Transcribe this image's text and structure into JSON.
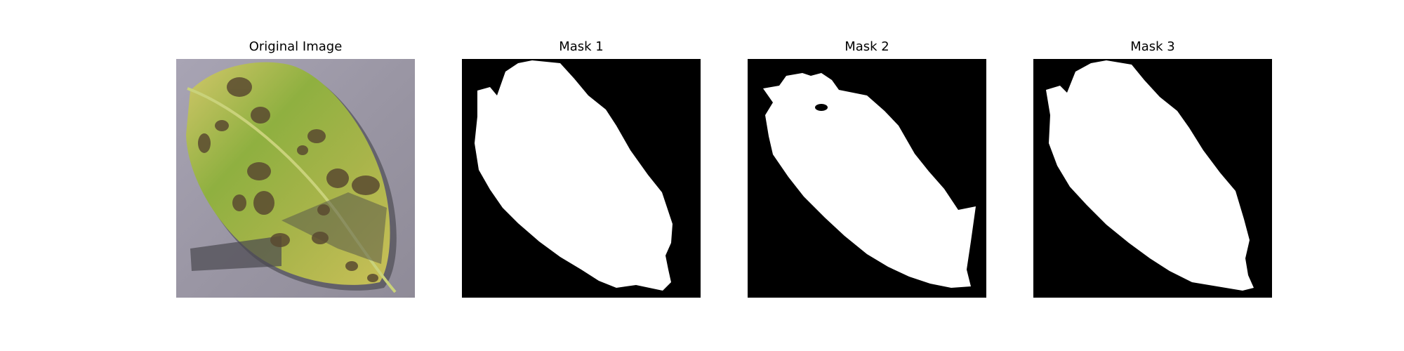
{
  "panels": [
    {
      "title": "Original Image",
      "kind": "photo",
      "subject": "leaf-with-spots"
    },
    {
      "title": "Mask 1",
      "kind": "binary-mask"
    },
    {
      "title": "Mask 2",
      "kind": "binary-mask"
    },
    {
      "title": "Mask 3",
      "kind": "binary-mask"
    }
  ],
  "colors": {
    "background": "#ffffff",
    "mask_background": "#000000",
    "mask_foreground": "#ffffff",
    "photo_ground": "#9a96a4",
    "leaf_light": "#c7c25a",
    "leaf_green": "#7fa23a",
    "spot": "#5a4a30"
  }
}
